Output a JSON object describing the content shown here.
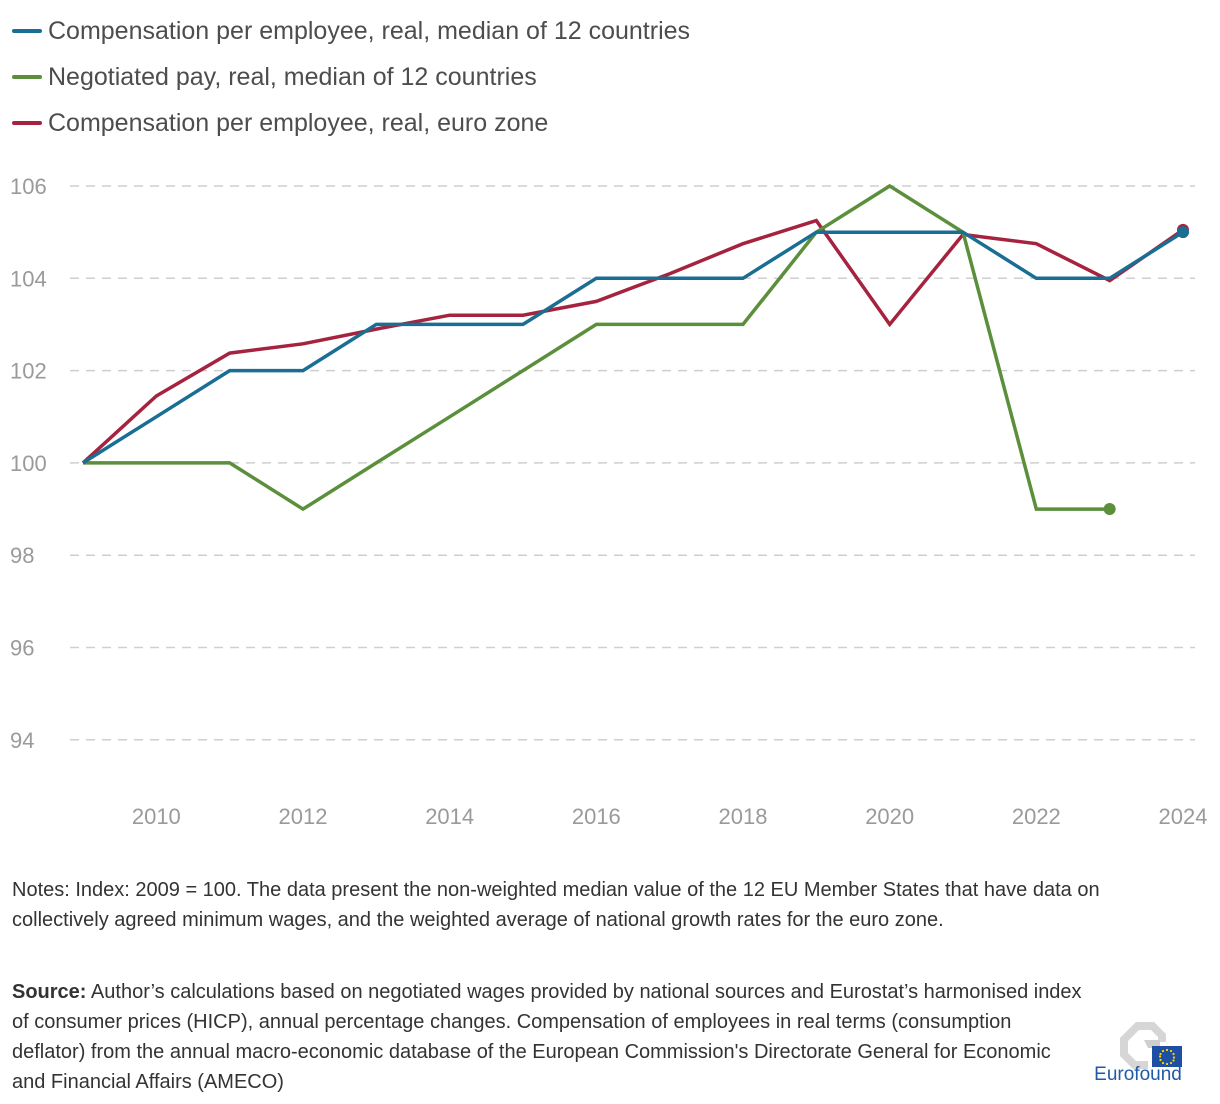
{
  "chart_data": {
    "type": "line",
    "x": [
      2009,
      2010,
      2011,
      2012,
      2013,
      2014,
      2015,
      2016,
      2017,
      2018,
      2019,
      2020,
      2021,
      2022,
      2023,
      2024
    ],
    "series": [
      {
        "name": "Compensation per employee, real, median of 12 countries",
        "color": "#1a6e94",
        "values": [
          100,
          101,
          102,
          102,
          103,
          103,
          103,
          104,
          104,
          104,
          105,
          105,
          105,
          104,
          104,
          105
        ]
      },
      {
        "name": "Negotiated pay, real, median of 12 countries",
        "color": "#5b8f3c",
        "values": [
          100,
          100,
          100,
          99,
          100,
          101,
          102,
          103,
          103,
          103,
          105,
          106,
          105,
          99,
          99,
          null
        ]
      },
      {
        "name": "Compensation per employee, real, euro zone",
        "color": "#a6233f",
        "values": [
          100,
          101.45,
          102.38,
          102.58,
          102.9,
          103.2,
          103.2,
          103.5,
          104.1,
          104.75,
          105.25,
          103.0,
          104.95,
          104.75,
          103.95,
          105.05
        ]
      }
    ],
    "y_ticks": [
      "106",
      "104",
      "102",
      "100",
      "98",
      "96",
      "94"
    ],
    "x_ticks": [
      "2010",
      "2012",
      "2014",
      "2016",
      "2018",
      "2020",
      "2022",
      "2024"
    ],
    "ylim": [
      93,
      106.5
    ],
    "xlim": [
      2009,
      2024
    ],
    "grid": true,
    "legend_position": "top-left"
  },
  "notes": "Notes: Index: 2009 = 100. The data present the non-weighted median value of the 12 EU Member States that have data on collectively agreed minimum wages, and the weighted average of national growth rates for the euro zone.",
  "source_label": "Source:",
  "source_text": " Author’s calculations based on negotiated wages provided by national sources and Eurostat’s harmonised index of consumer prices (HICP), annual percentage changes. Compensation of employees in real terms (consumption deflator) from the annual macro-economic database of the European Commission's Directorate General for Economic and Financial Affairs (AMECO)",
  "logo_text": "Eurofound"
}
